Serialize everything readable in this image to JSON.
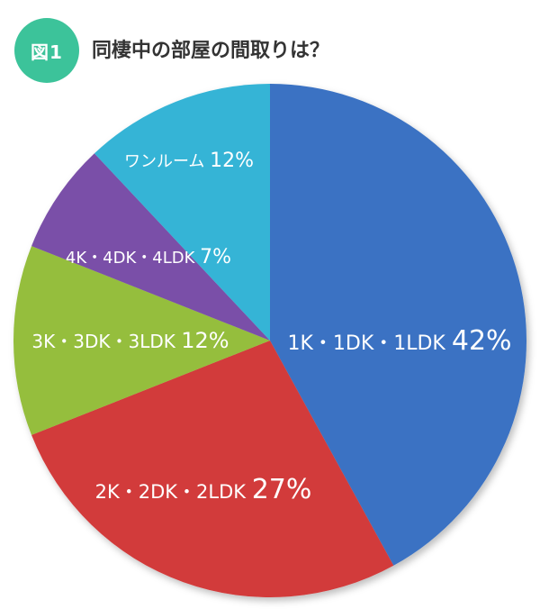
{
  "figure_badge": "図1",
  "chart_data": {
    "type": "pie",
    "title": "同棲中の部屋の間取りは？",
    "slices": [
      {
        "label": "1K・1DK・1LDK",
        "value": 42,
        "value_label": "42%",
        "color": "#3a72c3"
      },
      {
        "label": "2K・2DK・2LDK",
        "value": 27,
        "value_label": "27%",
        "color": "#d23a3a"
      },
      {
        "label": "3K・3DK・3LDK",
        "value": 12,
        "value_label": "12%",
        "color": "#95be3c"
      },
      {
        "label": "4K・4DK・4LDK",
        "value": 7,
        "value_label": "7%",
        "color": "#7a4fa8"
      },
      {
        "label": "ワンルーム",
        "value": 12,
        "value_label": "12%",
        "color": "#35b4d6"
      }
    ]
  }
}
